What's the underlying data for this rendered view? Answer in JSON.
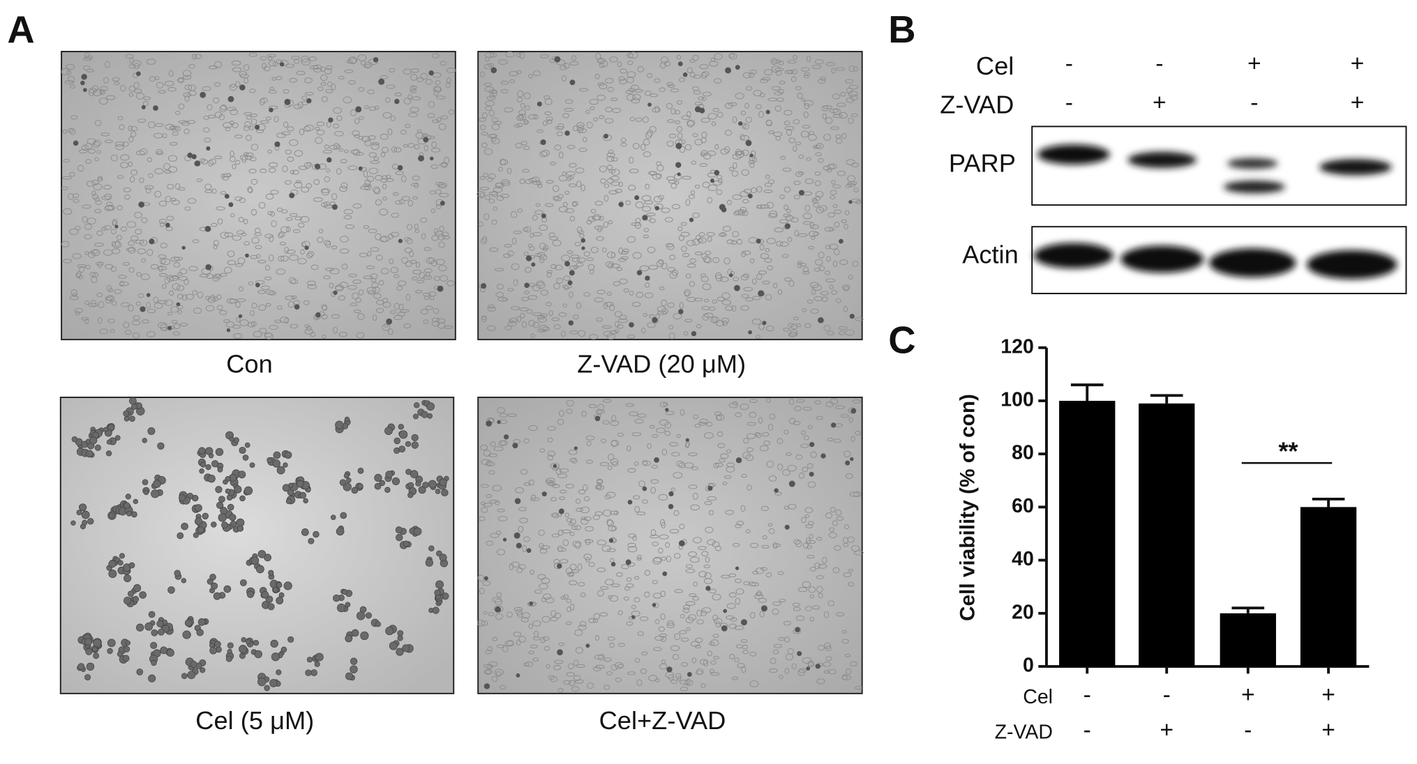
{
  "panel_a": {
    "label": "A",
    "images": [
      {
        "caption": "Con"
      },
      {
        "caption": "Z-VAD (20 μM)"
      },
      {
        "caption": "Cel (5 μM)"
      },
      {
        "caption": "Cel+Z-VAD"
      }
    ]
  },
  "panel_b": {
    "label": "B",
    "treatments": [
      {
        "label": "Cel",
        "signs": [
          "-",
          "-",
          "+",
          "+"
        ]
      },
      {
        "label": "Z-VAD",
        "signs": [
          "-",
          "+",
          "-",
          "+"
        ]
      }
    ],
    "blots": [
      {
        "label": "PARP"
      },
      {
        "label": "Actin"
      }
    ]
  },
  "chart_data": {
    "type": "bar",
    "panel_label": "C",
    "y_label": "Cell viability (% of con)",
    "values": [
      100,
      99,
      20,
      60
    ],
    "errors": [
      6,
      3,
      2,
      3
    ],
    "color": "#000000",
    "ylim": [
      0,
      120
    ],
    "yticks": [
      0,
      20,
      40,
      60,
      80,
      100,
      120
    ],
    "annotation": "**",
    "treatments": [
      {
        "label": "Cel",
        "signs": [
          "-",
          "-",
          "+",
          "+"
        ]
      },
      {
        "label": "Z-VAD",
        "signs": [
          "-",
          "+",
          "-",
          "+"
        ]
      }
    ]
  }
}
